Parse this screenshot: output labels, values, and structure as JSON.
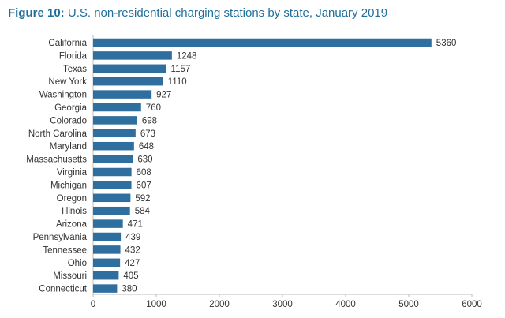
{
  "title": {
    "figure_label": "Figure 10:",
    "text": "U.S. non-residential charging stations by state, January 2019"
  },
  "colors": {
    "bar": "#2f6f9f",
    "title": "#1f6f9a",
    "axis": "#bdbdbd"
  },
  "chart_data": {
    "type": "bar",
    "orientation": "horizontal",
    "title": "U.S. non-residential charging stations by state, January 2019",
    "xlabel": "",
    "ylabel": "",
    "categories": [
      "California",
      "Florida",
      "Texas",
      "New York",
      "Washington",
      "Georgia",
      "Colorado",
      "North Carolina",
      "Maryland",
      "Massachusetts",
      "Virginia",
      "Michigan",
      "Oregon",
      "Illinois",
      "Arizona",
      "Pennsylvania",
      "Tennessee",
      "Ohio",
      "Missouri",
      "Connecticut"
    ],
    "values": [
      5360,
      1248,
      1157,
      1110,
      927,
      760,
      698,
      673,
      648,
      630,
      608,
      607,
      592,
      584,
      471,
      439,
      432,
      427,
      405,
      380
    ],
    "xlim": [
      0,
      6000
    ],
    "xticks": [
      0,
      1000,
      2000,
      3000,
      4000,
      5000,
      6000
    ],
    "grid": false,
    "data_labels": true
  }
}
